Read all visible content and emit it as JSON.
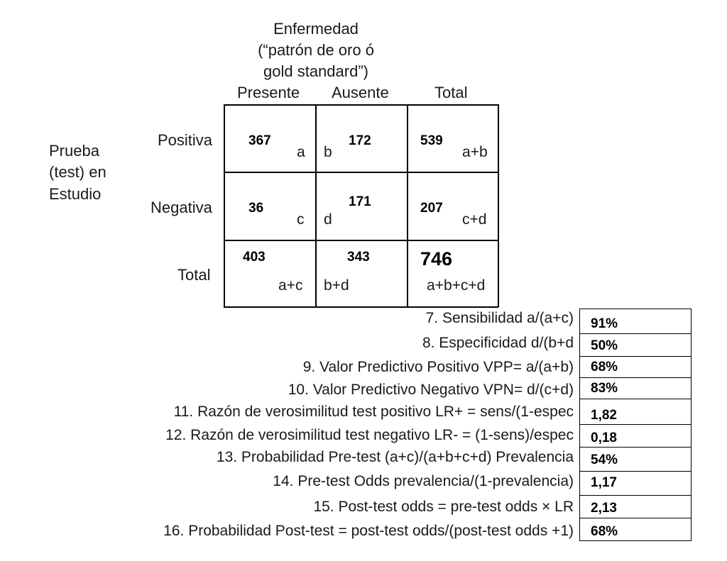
{
  "header": {
    "title_line1": "Enfermedad",
    "title_line2": "(“patrón de oro ó",
    "title_line3": "gold standard”)",
    "col_presente": "Presente",
    "col_ausente": "Ausente",
    "col_total": "Total"
  },
  "left_label": {
    "line1": "Prueba",
    "line2": "(test) en",
    "line3": "Estudio"
  },
  "rows": {
    "positiva": "Positiva",
    "negativa": "Negativa",
    "total": "Total"
  },
  "cells": {
    "a": "367",
    "a_letter": "a",
    "b": "172",
    "b_letter": "b",
    "ab": "539",
    "ab_label": "a+b",
    "c": "36",
    "c_letter": "c",
    "d": "171",
    "d_letter": "d",
    "cd": "207",
    "cd_label": "c+d",
    "ac": "403",
    "ac_label": "a+c",
    "bd": "343",
    "bd_label": "b+d",
    "total": "746",
    "total_label": "a+b+c+d"
  },
  "metrics": [
    {
      "label": "7. Sensibilidad  a/(a+c)",
      "value": "91%"
    },
    {
      "label": "8. Especificidad d/(b+d",
      "value": "50%"
    },
    {
      "label": "9. Valor Predictivo Positivo  VPP= a/(a+b)",
      "value": "68%"
    },
    {
      "label": "10. Valor Predictivo Negativo VPN= d/(c+d)",
      "value": "83%"
    },
    {
      "label": "11. Razón de verosimilitud test positivo  LR+  = sens/(1-espec",
      "value": "1,82"
    },
    {
      "label": "12. Razón de verosimilitud test negativo LR- = (1-sens)/espec",
      "value": "0,18"
    },
    {
      "label": "13. Probabilidad Pre-test   (a+c)/(a+b+c+d) Prevalencia",
      "value": "54%"
    },
    {
      "label": "14. Pre-test Odds prevalencia/(1-prevalencia)",
      "value": "1,17"
    },
    {
      "label": "15. Post-test odds = pre-test odds × LR",
      "value": "2,13"
    },
    {
      "label": "16. Probabilidad Post-test = post-test odds/(post-test odds +1)",
      "value": "68%"
    }
  ]
}
